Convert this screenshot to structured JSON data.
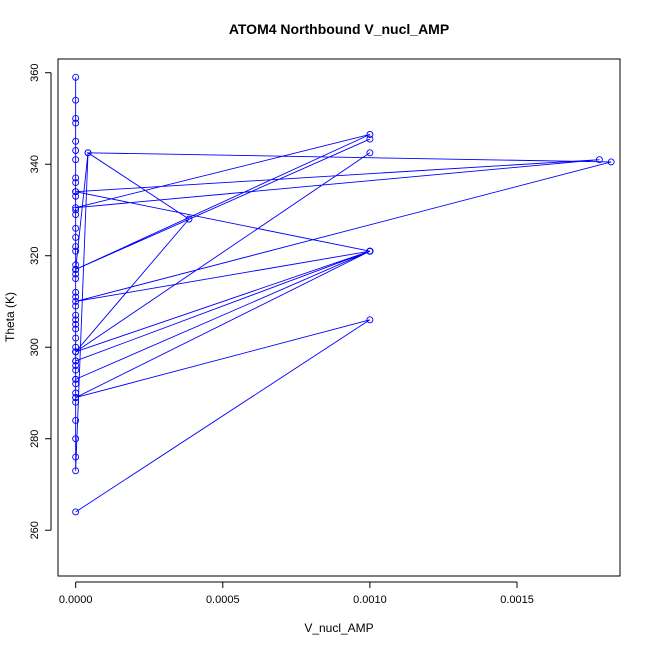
{
  "chart_data": {
    "type": "line",
    "title": "ATOM4 Northbound V_nucl_AMP",
    "xlabel": "V_nucl_AMP",
    "ylabel": "Theta (K)",
    "xlim": [
      -6e-05,
      0.00185
    ],
    "ylim": [
      250,
      363
    ],
    "x_ticks": [
      0,
      0.0005,
      0.001,
      0.0015
    ],
    "x_tick_labels": [
      "0.0000",
      "0.0005",
      "0.0010",
      "0.0015"
    ],
    "y_ticks": [
      260,
      280,
      300,
      320,
      340,
      360
    ],
    "y_tick_labels": [
      "260",
      "280",
      "300",
      "320",
      "340",
      "360"
    ],
    "grid": false,
    "legend": "none",
    "marker": "open-circle",
    "series": [
      {
        "color": "#0000ff",
        "x": [
          0,
          0,
          0,
          0,
          0,
          0,
          0,
          0,
          0,
          0,
          0,
          0,
          0,
          0,
          0,
          0,
          0,
          0,
          0,
          0,
          0,
          0,
          0,
          0,
          0,
          0,
          0,
          0,
          0,
          0,
          0,
          0,
          0,
          0,
          0,
          0,
          0,
          0,
          0,
          0,
          0,
          0,
          0,
          4.2e-05,
          0,
          0.001,
          0,
          0.001,
          0,
          0.00178,
          0,
          0.001,
          0,
          0.00182,
          4.2e-05,
          0.000385,
          0,
          0.001,
          0,
          0.001,
          0,
          0.001,
          0,
          0.001,
          0,
          0.001,
          0
        ],
        "y": [
          359,
          354,
          350,
          349,
          345,
          343,
          341,
          337,
          336,
          334,
          333,
          330,
          329,
          326,
          324,
          322,
          321,
          318,
          317,
          316,
          315,
          312,
          311,
          309,
          307,
          306,
          305,
          304,
          302,
          300,
          299,
          297,
          296,
          295,
          293,
          292,
          290,
          289,
          288,
          284,
          280,
          276,
          273,
          342.5,
          317,
          345.5,
          317,
          346.5,
          330.5,
          341,
          334,
          321,
          310,
          340.5,
          342.5,
          328,
          299,
          342.5,
          299,
          321,
          297,
          321,
          293,
          321,
          289,
          306,
          264
        ]
      }
    ]
  }
}
